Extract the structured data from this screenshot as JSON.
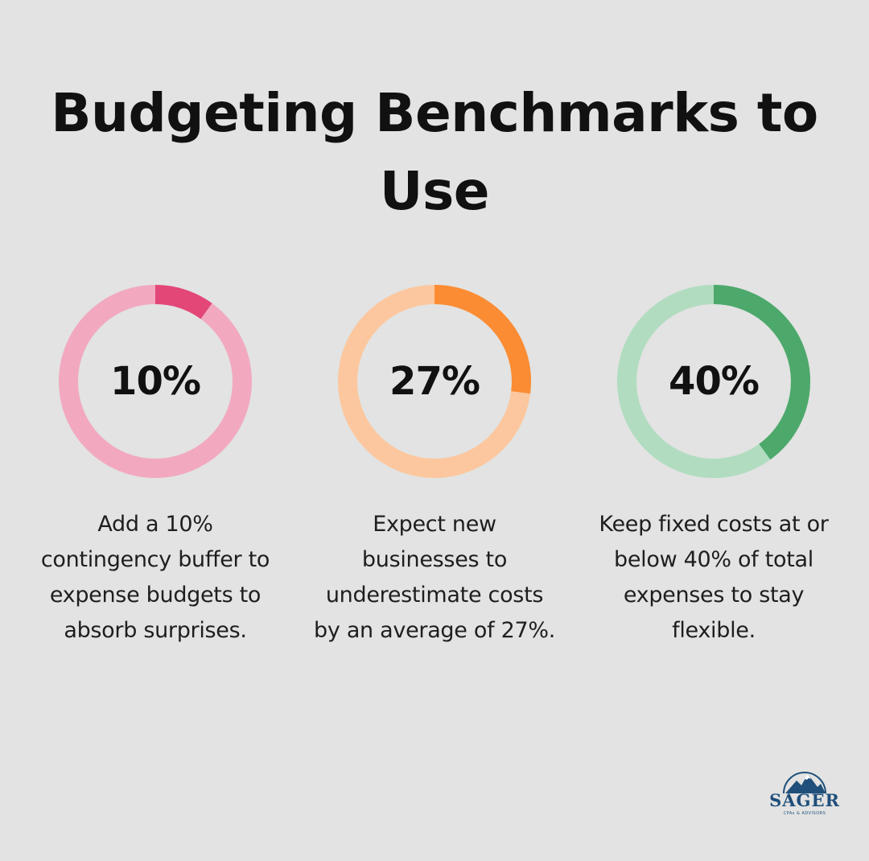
{
  "title": "Budgeting Benchmarks to Use",
  "chart_data": [
    {
      "type": "pie",
      "variant": "donut",
      "label": "10%",
      "value": 10,
      "max": 100,
      "description": "Add a 10% contingency buffer to expense budgets to absorb surprises.",
      "colors": {
        "fill": "#e24778",
        "track": "#f2a9c0"
      }
    },
    {
      "type": "pie",
      "variant": "donut",
      "label": "27%",
      "value": 27,
      "max": 100,
      "description": "Expect new businesses to underestimate costs by an average of 27%.",
      "colors": {
        "fill": "#fb8c33",
        "track": "#fcc79e"
      }
    },
    {
      "type": "pie",
      "variant": "donut",
      "label": "40%",
      "value": 40,
      "max": 100,
      "description": "Keep fixed costs at or below 40% of total expenses to stay flexible.",
      "colors": {
        "fill": "#4da86b",
        "track": "#b1dcc0"
      }
    }
  ],
  "logo": {
    "name": "SAGER",
    "tagline": "CPAs & ADVISORS",
    "icon": "mountain-logo-icon",
    "color": "#1f4f7a"
  },
  "colors": {
    "background": "#e2e3e2",
    "text": "#111111"
  }
}
